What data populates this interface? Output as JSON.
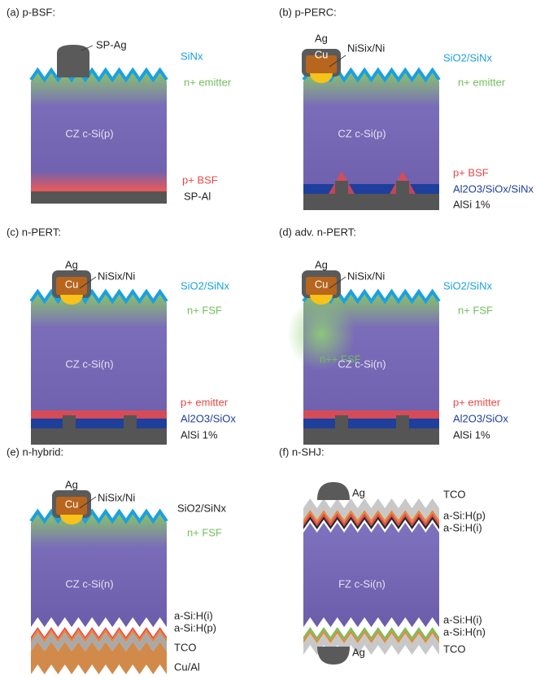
{
  "panels": [
    {
      "title": "(a) p-BSF:",
      "labels": [
        "SP-Ag",
        "SiNx",
        "n+ emitter",
        "CZ c-Si(p)",
        "p+ BSF",
        "SP-Al"
      ]
    },
    {
      "title": "(b) p-PERC:",
      "labels": [
        "Ag",
        "Cu",
        "NiSix/Ni",
        "SiO2/SiNx",
        "n+ emitter",
        "CZ c-Si(p)",
        "p+ BSF",
        "Al2O3/SiOx/SiNx",
        "AlSi 1%"
      ]
    },
    {
      "title": "(c) n-PERT:",
      "labels": [
        "Ag",
        "Cu",
        "NiSix/Ni",
        "SiO2/SiNx",
        "n+ FSF",
        "CZ c-Si(n)",
        "p+ emitter",
        "Al2O3/SiOx",
        "AlSi 1%"
      ]
    },
    {
      "title": "(d) adv. n-PERT:",
      "labels": [
        "Ag",
        "Cu",
        "NiSix/Ni",
        "SiO2/SiNx",
        "n+ FSF",
        "n++ FSF",
        "CZ c-Si(n)",
        "p+ emitter",
        "Al2O3/SiOx",
        "AlSi 1%"
      ]
    },
    {
      "title": "(e) n-hybrid:",
      "labels": [
        "Ag",
        "Cu",
        "NiSix/Ni",
        "SiO2/SiNx",
        "n+ FSF",
        "CZ c-Si(n)",
        "a-Si:H(i)",
        "a-Si:H(p)",
        "TCO",
        "Cu/Al"
      ]
    },
    {
      "title": "(f) n-SHJ:",
      "labels": [
        "Ag",
        "TCO",
        "a-Si:H(p)",
        "a-Si:H(i)",
        "FZ c-Si(n)",
        "a-Si:H(i)",
        "a-Si:H(n)",
        "TCO",
        "Ag"
      ]
    }
  ]
}
